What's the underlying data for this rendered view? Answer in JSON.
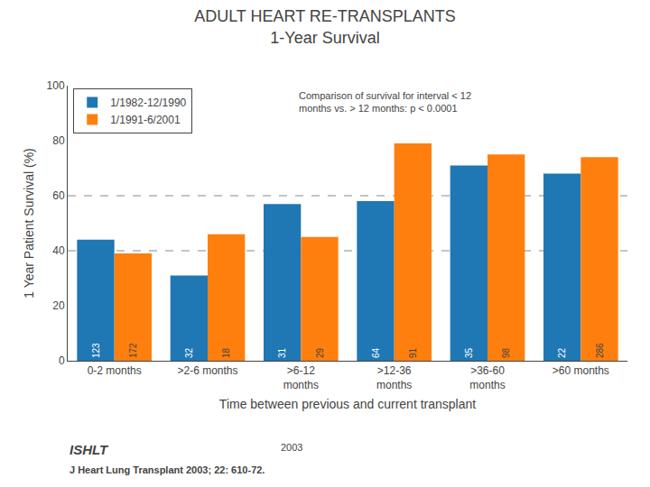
{
  "chart_data": {
    "type": "bar",
    "title": "ADULT HEART RE-TRANSPLANTS",
    "subtitle": "1-Year Survival",
    "categories": [
      "0-2 months",
      ">2-6 months",
      ">6-12\nmonths",
      ">12-36\nmonths",
      ">36-60\nmonths",
      ">60 months"
    ],
    "series": [
      {
        "name": "1/1982-12/1990",
        "values": [
          44,
          31,
          57,
          58,
          71,
          68
        ],
        "n": [
          123,
          32,
          31,
          64,
          35,
          22
        ]
      },
      {
        "name": "1/1991-6/2001",
        "values": [
          39,
          46,
          45,
          79,
          75,
          74
        ],
        "n": [
          172,
          18,
          29,
          91,
          98,
          286
        ]
      }
    ],
    "ylabel": "1 Year Patient Survival (%)",
    "xlabel": "Time between previous and current transplant",
    "annotations": [
      "Comparison of survival for interval < 12\nmonths vs. > 12 months: p < 0.0001",
      "ISHLT",
      "2003",
      "J Heart Lung Transplant 2003; 22: 610-72."
    ],
    "ylim": [
      0,
      100
    ],
    "yticks": [
      0,
      20,
      40,
      60,
      80,
      100
    ],
    "hlines": [
      40,
      60
    ],
    "grid": false,
    "legend": "upper left"
  }
}
